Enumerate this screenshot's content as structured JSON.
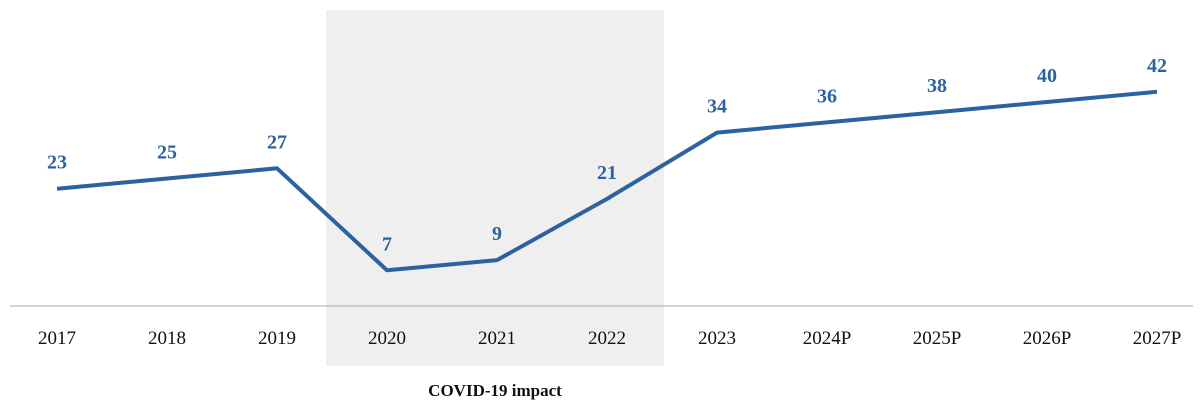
{
  "chart_data": {
    "type": "line",
    "categories": [
      "2017",
      "2018",
      "2019",
      "2020",
      "2021",
      "2022",
      "2023",
      "2024P",
      "2025P",
      "2026P",
      "2027P"
    ],
    "series": [
      {
        "values": [
          23,
          25,
          27,
          7,
          9,
          21,
          34,
          36,
          38,
          40,
          42
        ]
      }
    ],
    "data_labels": [
      "23",
      "25",
      "27",
      "7",
      "9",
      "21",
      "34",
      "36",
      "38",
      "40",
      "42"
    ],
    "shaded_region": {
      "from": "2020",
      "to": "2022",
      "label": "COVID-19 impact"
    },
    "title": "",
    "xlabel": "",
    "ylabel": "",
    "ylim": [
      0,
      49
    ],
    "grid": false,
    "legend": "none",
    "colors": {
      "line": "#2d62a0",
      "labels": "#2d62a0",
      "shade": "#efefef",
      "axis": "#aaaaaa"
    }
  }
}
